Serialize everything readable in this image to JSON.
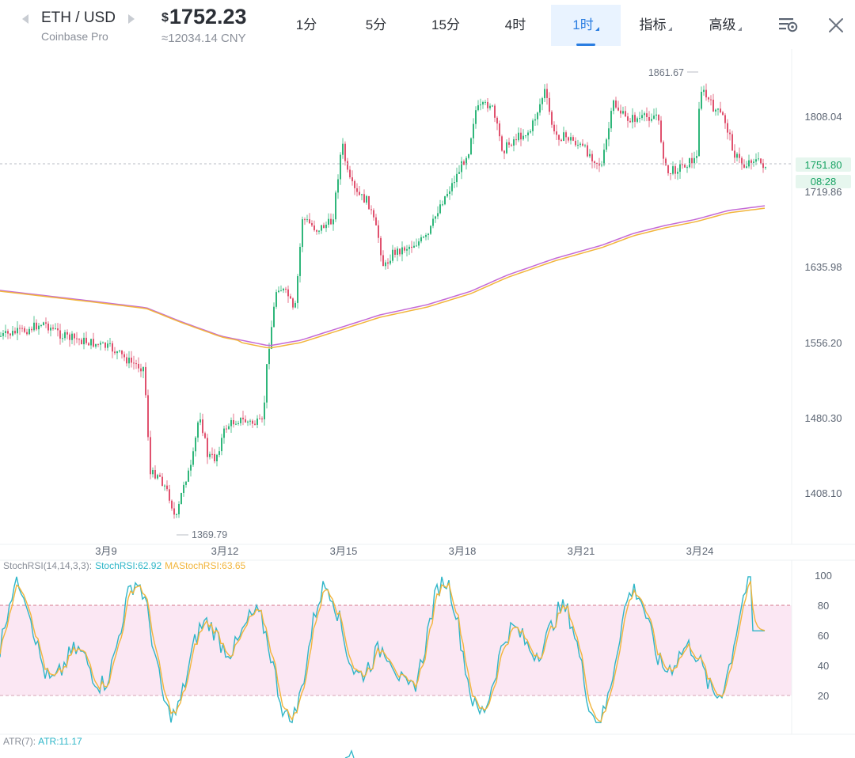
{
  "header": {
    "pair": "ETH / USD",
    "exchange": "Coinbase Pro",
    "price_currency": "$",
    "price": "1752.23",
    "price_cny": "≈12034.14 CNY",
    "timeframes": [
      {
        "label": "1分",
        "active": false
      },
      {
        "label": "5分",
        "active": false
      },
      {
        "label": "15分",
        "active": false
      },
      {
        "label": "4时",
        "active": false
      },
      {
        "label": "1时",
        "active": true
      }
    ],
    "indicators_label": "指标",
    "advanced_label": "高级"
  },
  "main_chart": {
    "price_axis_labels": [
      "1808.04",
      "1719.86",
      "1635.98",
      "1556.20",
      "1480.30",
      "1408.10"
    ],
    "date_labels": [
      "3月9",
      "3月12",
      "3月15",
      "3月18",
      "3月21",
      "3月24"
    ],
    "high_marker": "1861.67",
    "low_marker": "1369.79",
    "last_price_tag": "1751.80",
    "countdown_tag": "08:28",
    "colors": {
      "up": "#2fb67a",
      "down": "#e0516e",
      "ma_fast": "#f2b53c",
      "ma_slow": "#c46ad6",
      "last_line": "#b9bec6",
      "tag_bg": "#e6f6ee",
      "tag_text": "#16a262"
    }
  },
  "stoch_rsi": {
    "label": "StochRSI(14,14,3,3):",
    "k_label": "StochRSI:62.92",
    "d_label": "MAStochRSI:63.65",
    "levels": [
      "100",
      "80",
      "60",
      "40",
      "20"
    ],
    "colors": {
      "k": "#2fb6c8",
      "d": "#f2b53c",
      "band": "#fbe7f3",
      "level_line": "#d67a8e"
    }
  },
  "atr": {
    "label": "ATR(7):",
    "value_label": "ATR:11.17",
    "color": "#2fb6c8"
  }
}
